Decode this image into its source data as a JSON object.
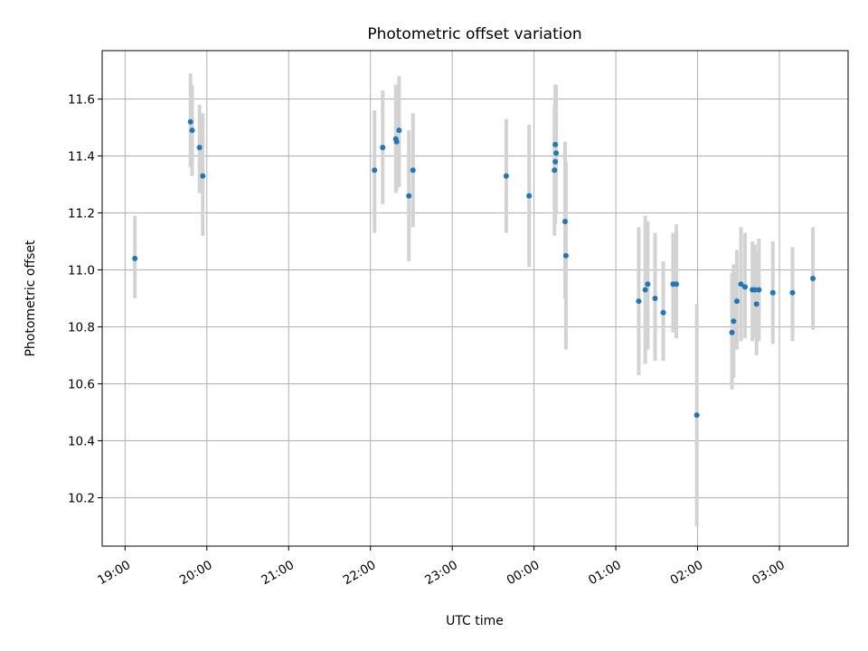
{
  "chart_data": {
    "type": "scatter",
    "title": "Photometric offset variation",
    "xlabel": "UTC time",
    "ylabel": "Photometric offset",
    "x_unit": "hours",
    "x_tick_labels": [
      "19:00",
      "20:00",
      "21:00",
      "22:00",
      "23:00",
      "00:00",
      "01:00",
      "02:00",
      "03:00"
    ],
    "x_tick_values": [
      19,
      20,
      21,
      22,
      23,
      24,
      25,
      26,
      27
    ],
    "xlim": [
      18.72,
      27.84
    ],
    "ylim": [
      10.03,
      11.77
    ],
    "y_ticks": [
      10.2,
      10.4,
      10.6,
      10.8,
      11.0,
      11.2,
      11.4,
      11.6
    ],
    "y_tick_labels": [
      "10.2",
      "10.4",
      "10.6",
      "10.8",
      "11.0",
      "11.2",
      "11.4",
      "11.6"
    ],
    "grid": true,
    "point_color": "#1f77b4",
    "errorbar_color": "#d3d3d3",
    "points": [
      {
        "x": 19.12,
        "y": 11.04,
        "lo": 10.9,
        "hi": 11.19
      },
      {
        "x": 19.8,
        "y": 11.52,
        "lo": 11.36,
        "hi": 11.69
      },
      {
        "x": 19.82,
        "y": 11.49,
        "lo": 11.33,
        "hi": 11.65
      },
      {
        "x": 19.91,
        "y": 11.43,
        "lo": 11.27,
        "hi": 11.58
      },
      {
        "x": 19.95,
        "y": 11.33,
        "lo": 11.12,
        "hi": 11.55
      },
      {
        "x": 22.05,
        "y": 11.35,
        "lo": 11.13,
        "hi": 11.56
      },
      {
        "x": 22.15,
        "y": 11.43,
        "lo": 11.23,
        "hi": 11.63
      },
      {
        "x": 22.31,
        "y": 11.46,
        "lo": 11.27,
        "hi": 11.65
      },
      {
        "x": 22.32,
        "y": 11.45,
        "lo": 11.28,
        "hi": 11.64
      },
      {
        "x": 22.35,
        "y": 11.49,
        "lo": 11.29,
        "hi": 11.68
      },
      {
        "x": 22.47,
        "y": 11.26,
        "lo": 11.03,
        "hi": 11.49
      },
      {
        "x": 22.52,
        "y": 11.35,
        "lo": 11.15,
        "hi": 11.55
      },
      {
        "x": 23.66,
        "y": 11.33,
        "lo": 11.13,
        "hi": 11.53
      },
      {
        "x": 23.94,
        "y": 11.26,
        "lo": 11.01,
        "hi": 11.51
      },
      {
        "x": 24.25,
        "y": 11.35,
        "lo": 11.12,
        "hi": 11.58
      },
      {
        "x": 24.26,
        "y": 11.44,
        "lo": 11.23,
        "hi": 11.65
      },
      {
        "x": 24.26,
        "y": 11.38,
        "lo": 11.16,
        "hi": 11.6
      },
      {
        "x": 24.27,
        "y": 11.41,
        "lo": 11.2,
        "hi": 11.65
      },
      {
        "x": 24.38,
        "y": 11.17,
        "lo": 10.9,
        "hi": 11.45
      },
      {
        "x": 24.39,
        "y": 11.05,
        "lo": 10.72,
        "hi": 11.38
      },
      {
        "x": 25.28,
        "y": 10.89,
        "lo": 10.63,
        "hi": 11.15
      },
      {
        "x": 25.36,
        "y": 10.93,
        "lo": 10.67,
        "hi": 11.19
      },
      {
        "x": 25.39,
        "y": 10.95,
        "lo": 10.72,
        "hi": 11.17
      },
      {
        "x": 25.48,
        "y": 10.9,
        "lo": 10.68,
        "hi": 11.13
      },
      {
        "x": 25.58,
        "y": 10.85,
        "lo": 10.68,
        "hi": 11.03
      },
      {
        "x": 25.7,
        "y": 10.95,
        "lo": 10.78,
        "hi": 11.13
      },
      {
        "x": 25.74,
        "y": 10.95,
        "lo": 10.76,
        "hi": 11.16
      },
      {
        "x": 25.99,
        "y": 10.49,
        "lo": 10.1,
        "hi": 10.88
      },
      {
        "x": 26.42,
        "y": 10.78,
        "lo": 10.58,
        "hi": 10.99
      },
      {
        "x": 26.44,
        "y": 10.82,
        "lo": 10.62,
        "hi": 11.02
      },
      {
        "x": 26.48,
        "y": 10.89,
        "lo": 10.72,
        "hi": 11.07
      },
      {
        "x": 26.53,
        "y": 10.95,
        "lo": 10.75,
        "hi": 11.15
      },
      {
        "x": 26.58,
        "y": 10.94,
        "lo": 10.76,
        "hi": 11.13
      },
      {
        "x": 26.67,
        "y": 10.93,
        "lo": 10.75,
        "hi": 11.1
      },
      {
        "x": 26.7,
        "y": 10.93,
        "lo": 10.76,
        "hi": 11.09
      },
      {
        "x": 26.72,
        "y": 10.88,
        "lo": 10.7,
        "hi": 11.06
      },
      {
        "x": 26.75,
        "y": 10.93,
        "lo": 10.75,
        "hi": 11.11
      },
      {
        "x": 26.92,
        "y": 10.92,
        "lo": 10.74,
        "hi": 11.1
      },
      {
        "x": 27.16,
        "y": 10.92,
        "lo": 10.75,
        "hi": 11.08
      },
      {
        "x": 27.41,
        "y": 10.97,
        "lo": 10.79,
        "hi": 11.15
      }
    ]
  }
}
